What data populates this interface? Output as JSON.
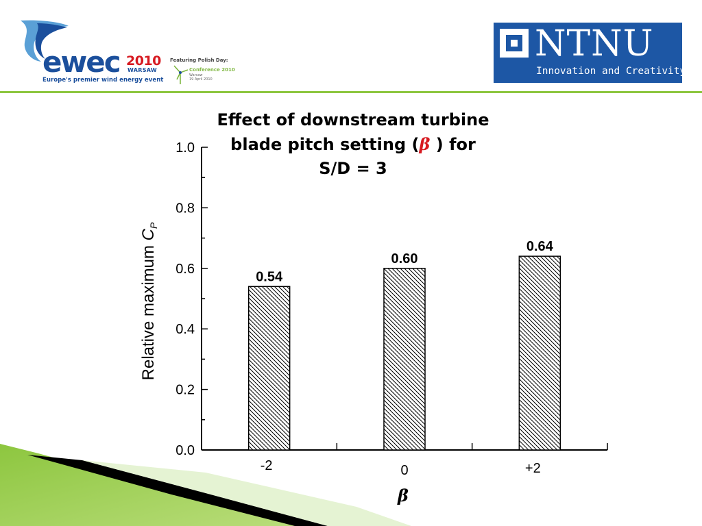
{
  "header": {
    "ewec_logo": {
      "wordmark": "ewec",
      "year": "2010",
      "city": "WARSAW",
      "tagline": "Europe's premier wind energy event",
      "polish_day": "Featuring Polish Day:",
      "conference_title": "Conference 2010",
      "conference_city": "Warsaw",
      "conference_date": "19 April 2010"
    },
    "ntnu_logo": {
      "name": "NTNU",
      "slogan": "Innovation and Creativity"
    },
    "rule_color": "#8dc63f"
  },
  "title": {
    "before": "Effect of downstream turbine blade pitch setting (",
    "symbol": "β",
    "after": " ) for S/D = 3"
  },
  "chart_data": {
    "type": "bar",
    "categories": [
      "-2",
      "0",
      "+2"
    ],
    "values": [
      0.54,
      0.6,
      0.64
    ],
    "data_labels": [
      "0.54",
      "0.60",
      "0.64"
    ],
    "xlabel": "β",
    "ylabel": "Relative maximum",
    "ylabel_symbol": "C",
    "ylabel_subscript": "P",
    "ylim": [
      0.0,
      1.0
    ],
    "yticks": [
      "0.0",
      "0.2",
      "0.4",
      "0.6",
      "0.8",
      "1.0"
    ],
    "minor_tick_step": 0.1,
    "bar_fill": "diagonal-hatch",
    "grid": false,
    "legend": "none"
  },
  "decoration": {
    "accent_green": "#8dc63f",
    "swoosh_dark": "#000000"
  }
}
